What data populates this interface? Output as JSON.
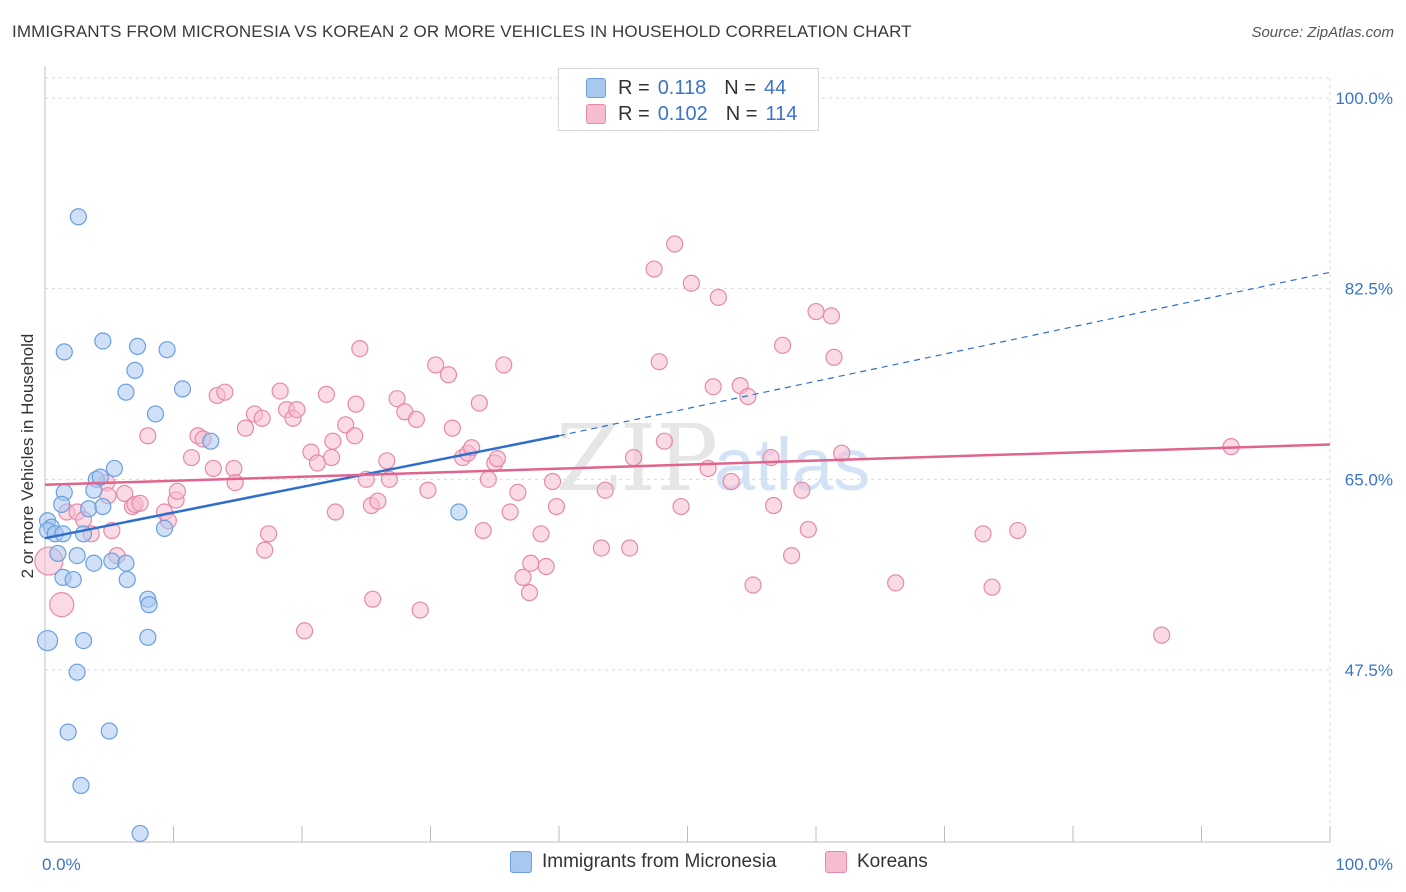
{
  "title": "IMMIGRANTS FROM MICRONESIA VS KOREAN 2 OR MORE VEHICLES IN HOUSEHOLD CORRELATION CHART",
  "source": "Source: ZipAtlas.com",
  "watermark": {
    "zip": "ZIP",
    "atlas": "atlas"
  },
  "colors": {
    "blue_fill": "#a9c8f0",
    "blue_stroke": "#6a9fe0",
    "blue_line": "#2f6fcc",
    "pink_fill": "#f6bccf",
    "pink_stroke": "#e68aa8",
    "pink_line": "#e0648c",
    "tick_label": "#3a74c8",
    "grid": "#d9d9d9"
  },
  "legend": {
    "rows": [
      {
        "r_label": "R =",
        "r_value": "0.118",
        "n_label": "N =",
        "n_value": "44"
      },
      {
        "r_label": "R =",
        "r_value": "0.102",
        "n_label": "N =",
        "n_value": "114"
      }
    ]
  },
  "bottom_legend": [
    "Immigrants from Micronesia",
    "Koreans"
  ],
  "chart_data": {
    "type": "scatter",
    "title": "IMMIGRANTS FROM MICRONESIA VS KOREAN 2 OR MORE VEHICLES IN HOUSEHOLD CORRELATION CHART",
    "xlabel": "",
    "ylabel": "2 or more Vehicles in Household",
    "xlim": [
      0,
      100
    ],
    "ylim": [
      30,
      102
    ],
    "x_tick_labels": [
      {
        "value": 0,
        "label": "0.0%"
      },
      {
        "value": 100,
        "label": "100.0%"
      }
    ],
    "y_ticks": [
      {
        "value": 47.5,
        "label": "47.5%"
      },
      {
        "value": 65.0,
        "label": "65.0%"
      },
      {
        "value": 82.5,
        "label": "82.5%"
      },
      {
        "value": 100.0,
        "label": "100.0%"
      }
    ],
    "series": [
      {
        "name": "Immigrants from Micronesia",
        "color": "blue",
        "R": 0.118,
        "N": 44,
        "trend": {
          "x0": 0,
          "y0": 59.6,
          "x1": 40,
          "y1": 69.0,
          "dash_x1": 100,
          "dash_y1": 84.0
        },
        "points": [
          [
            2.6,
            89.1
          ],
          [
            0.2,
            61.2
          ],
          [
            0.5,
            60.6
          ],
          [
            0.2,
            60.3
          ],
          [
            0.8,
            60.0
          ],
          [
            1.0,
            58.2
          ],
          [
            1.4,
            60.0
          ],
          [
            1.4,
            56.0
          ],
          [
            0.2,
            50.2
          ],
          [
            1.5,
            76.7
          ],
          [
            1.5,
            63.8
          ],
          [
            1.3,
            62.7
          ],
          [
            2.2,
            55.8
          ],
          [
            3.0,
            60.0
          ],
          [
            2.5,
            58.0
          ],
          [
            3.4,
            62.3
          ],
          [
            3.8,
            57.3
          ],
          [
            4.0,
            65.0
          ],
          [
            3.8,
            64.0
          ],
          [
            4.3,
            65.2
          ],
          [
            4.5,
            62.5
          ],
          [
            5.4,
            66.0
          ],
          [
            5.2,
            57.5
          ],
          [
            4.5,
            77.7
          ],
          [
            6.3,
            57.3
          ],
          [
            6.4,
            55.8
          ],
          [
            7.0,
            75.0
          ],
          [
            7.2,
            77.2
          ],
          [
            6.3,
            73.0
          ],
          [
            8.6,
            71.0
          ],
          [
            8.0,
            54.0
          ],
          [
            8.1,
            53.5
          ],
          [
            8.0,
            50.5
          ],
          [
            9.3,
            60.5
          ],
          [
            9.5,
            76.9
          ],
          [
            10.7,
            73.3
          ],
          [
            3.0,
            50.2
          ],
          [
            2.5,
            47.3
          ],
          [
            1.8,
            41.8
          ],
          [
            5.0,
            41.9
          ],
          [
            2.8,
            36.9
          ],
          [
            7.4,
            32.5
          ],
          [
            12.9,
            68.5
          ],
          [
            32.2,
            62.0
          ]
        ]
      },
      {
        "name": "Koreans",
        "color": "pink",
        "R": 0.102,
        "N": 114,
        "trend": {
          "x0": 0,
          "y0": 64.5,
          "x1": 100,
          "y1": 68.2
        },
        "points": [
          [
            0.3,
            57.5
          ],
          [
            1.3,
            53.5
          ],
          [
            1.7,
            62.0
          ],
          [
            2.5,
            62.0
          ],
          [
            3.0,
            61.3
          ],
          [
            3.6,
            60.0
          ],
          [
            4.8,
            64.7
          ],
          [
            4.9,
            63.5
          ],
          [
            5.2,
            60.3
          ],
          [
            5.6,
            58.0
          ],
          [
            6.2,
            63.7
          ],
          [
            6.8,
            62.5
          ],
          [
            7.0,
            62.7
          ],
          [
            7.4,
            62.8
          ],
          [
            8.0,
            69.0
          ],
          [
            9.3,
            62.0
          ],
          [
            9.6,
            61.2
          ],
          [
            10.2,
            63.1
          ],
          [
            10.3,
            63.9
          ],
          [
            11.4,
            67.0
          ],
          [
            11.9,
            69.0
          ],
          [
            12.3,
            68.7
          ],
          [
            13.1,
            66.0
          ],
          [
            13.4,
            72.7
          ],
          [
            14.0,
            73.0
          ],
          [
            14.7,
            66.0
          ],
          [
            14.8,
            64.7
          ],
          [
            15.6,
            69.7
          ],
          [
            16.3,
            71.0
          ],
          [
            16.9,
            70.6
          ],
          [
            17.1,
            58.5
          ],
          [
            17.4,
            60.0
          ],
          [
            18.3,
            73.1
          ],
          [
            18.8,
            71.4
          ],
          [
            19.3,
            70.6
          ],
          [
            19.6,
            71.4
          ],
          [
            20.2,
            51.1
          ],
          [
            20.7,
            67.5
          ],
          [
            21.2,
            66.5
          ],
          [
            21.9,
            72.8
          ],
          [
            22.3,
            67.0
          ],
          [
            22.4,
            68.5
          ],
          [
            22.6,
            62.0
          ],
          [
            23.4,
            70.0
          ],
          [
            24.1,
            69.0
          ],
          [
            24.2,
            71.9
          ],
          [
            24.5,
            77.0
          ],
          [
            25.0,
            65.0
          ],
          [
            25.5,
            54.0
          ],
          [
            25.4,
            62.6
          ],
          [
            25.9,
            63.0
          ],
          [
            26.6,
            66.7
          ],
          [
            26.8,
            65.0
          ],
          [
            27.4,
            72.4
          ],
          [
            28.0,
            71.2
          ],
          [
            28.9,
            70.5
          ],
          [
            29.2,
            53.0
          ],
          [
            29.8,
            64.0
          ],
          [
            30.4,
            75.5
          ],
          [
            31.4,
            74.6
          ],
          [
            31.7,
            69.7
          ],
          [
            32.5,
            67.0
          ],
          [
            32.9,
            67.4
          ],
          [
            33.2,
            67.9
          ],
          [
            33.8,
            72.0
          ],
          [
            34.1,
            60.3
          ],
          [
            34.5,
            65.0
          ],
          [
            35.0,
            66.5
          ],
          [
            35.2,
            66.9
          ],
          [
            35.7,
            75.5
          ],
          [
            36.2,
            62.0
          ],
          [
            36.8,
            63.8
          ],
          [
            37.2,
            56.0
          ],
          [
            37.8,
            57.3
          ],
          [
            37.7,
            54.6
          ],
          [
            38.6,
            60.0
          ],
          [
            39.0,
            57.0
          ],
          [
            39.5,
            64.8
          ],
          [
            39.8,
            62.5
          ],
          [
            43.3,
            58.7
          ],
          [
            43.6,
            64.0
          ],
          [
            45.5,
            58.7
          ],
          [
            45.8,
            67.0
          ],
          [
            47.4,
            84.3
          ],
          [
            47.8,
            75.8
          ],
          [
            48.2,
            68.5
          ],
          [
            49.0,
            86.6
          ],
          [
            49.5,
            62.5
          ],
          [
            50.3,
            83.0
          ],
          [
            51.6,
            66.0
          ],
          [
            52.0,
            73.5
          ],
          [
            52.4,
            81.7
          ],
          [
            53.4,
            64.8
          ],
          [
            54.1,
            73.6
          ],
          [
            54.7,
            72.6
          ],
          [
            55.1,
            55.3
          ],
          [
            56.5,
            67.0
          ],
          [
            56.7,
            62.6
          ],
          [
            57.4,
            77.3
          ],
          [
            58.1,
            58.0
          ],
          [
            58.9,
            64.0
          ],
          [
            59.4,
            60.4
          ],
          [
            60.0,
            80.4
          ],
          [
            61.2,
            80.0
          ],
          [
            61.4,
            76.2
          ],
          [
            62.0,
            67.4
          ],
          [
            66.2,
            55.5
          ],
          [
            73.0,
            60.0
          ],
          [
            73.7,
            55.1
          ],
          [
            75.7,
            60.3
          ],
          [
            86.9,
            50.7
          ],
          [
            92.3,
            68.0
          ]
        ]
      }
    ]
  }
}
